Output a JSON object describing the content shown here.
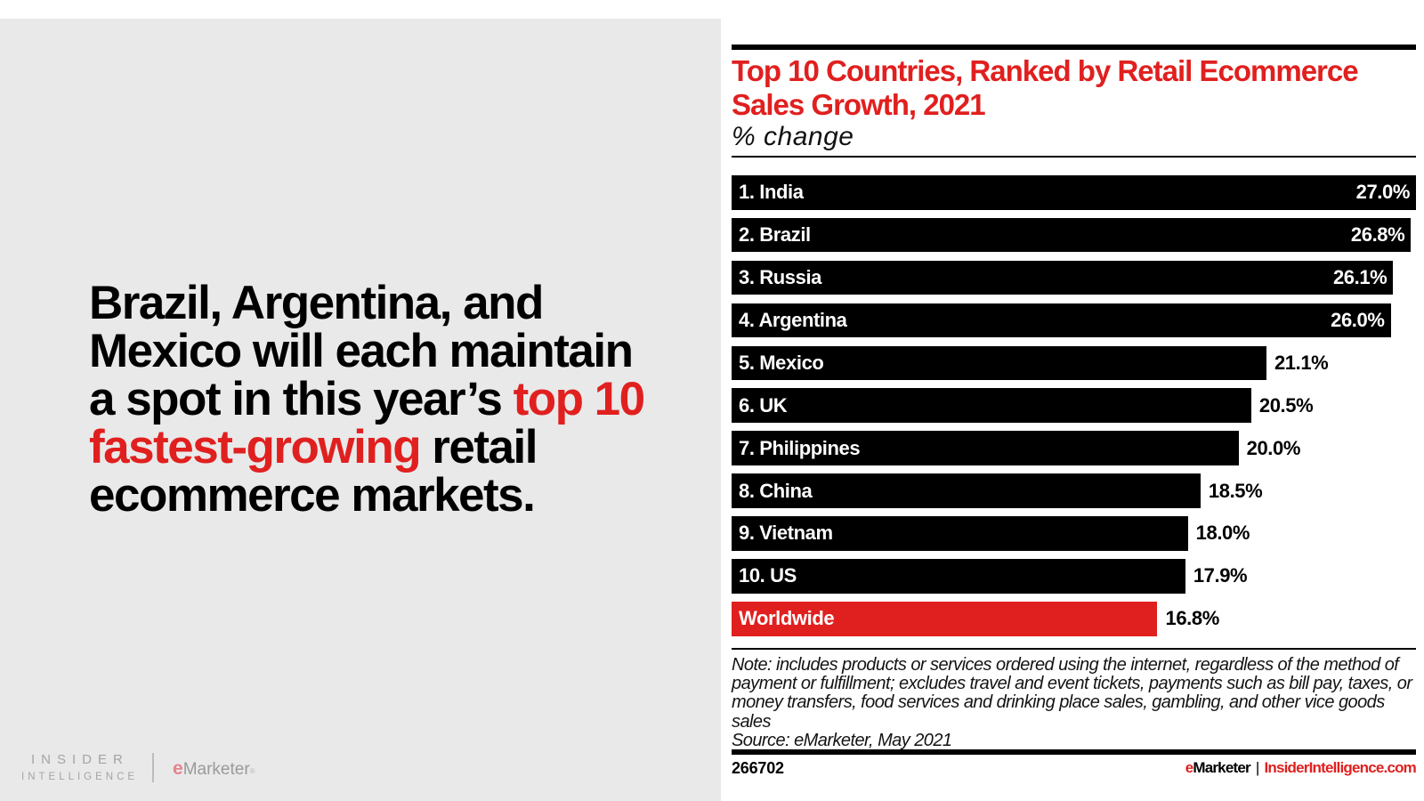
{
  "colors": {
    "accent_red": "#e0201f",
    "bar_black": "#000000",
    "panel_gray": "#e9e9e9",
    "logo_gray": "#a4a4a4"
  },
  "left_panel": {
    "headline_lines": [
      {
        "segments": [
          {
            "text": "Brazil, Argentina, and",
            "red": false
          }
        ]
      },
      {
        "segments": [
          {
            "text": "Mexico will each maintain",
            "red": false
          }
        ]
      },
      {
        "segments": [
          {
            "text": "a spot in this year’s ",
            "red": false
          },
          {
            "text": "top 10",
            "red": true
          }
        ]
      },
      {
        "segments": [
          {
            "text": "fastest-growing",
            "red": true
          },
          {
            "text": " retail",
            "red": false
          }
        ]
      },
      {
        "segments": [
          {
            "text": "ecommerce markets.",
            "red": false
          }
        ]
      }
    ],
    "logo": {
      "line1": "INSIDER",
      "line2": "INTELLIGENCE",
      "emarketer_e": "e",
      "emarketer_rest": "Marketer",
      "registered": "®"
    }
  },
  "chart": {
    "title_line1": "Top 10 Countries, Ranked by Retail Ecommerce",
    "title_line2": "Sales Growth, 2021",
    "subtitle": "% change",
    "note_lines": [
      "Note: includes products or services ordered using the internet, regardless of the method of",
      "payment or fulfillment; excludes travel and event tickets, payments such as bill pay, taxes, or",
      "money transfers, food services and drinking place sales, gambling, and other vice goods",
      "sales"
    ],
    "source_line": "Source: eMarketer, May 2021",
    "footer": {
      "chart_id": "266702",
      "brand_e": "e",
      "brand_rest": "Marketer",
      "separator": "|",
      "site": "InsiderIntelligence.com"
    }
  },
  "chart_data": {
    "type": "bar",
    "orientation": "horizontal",
    "title": "Top 10 Countries, Ranked by Retail Ecommerce Sales Growth, 2021",
    "xlabel": "% change",
    "xlim": [
      0,
      27.0
    ],
    "grid": false,
    "legend": false,
    "categories": [
      "1. India",
      "2. Brazil",
      "3. Russia",
      "4. Argentina",
      "5. Mexico",
      "6. UK",
      "7. Philippines",
      "8. China",
      "9. Vietnam",
      "10. US",
      "Worldwide"
    ],
    "values": [
      27.0,
      26.8,
      26.1,
      26.0,
      21.1,
      20.5,
      20.0,
      18.5,
      18.0,
      17.9,
      16.8
    ],
    "items": [
      {
        "label": "1. India",
        "value": 27.0,
        "display": "27.0%",
        "value_inside": true,
        "color": "#000000"
      },
      {
        "label": "2. Brazil",
        "value": 26.8,
        "display": "26.8%",
        "value_inside": true,
        "color": "#000000"
      },
      {
        "label": "3. Russia",
        "value": 26.1,
        "display": "26.1%",
        "value_inside": true,
        "color": "#000000"
      },
      {
        "label": "4. Argentina",
        "value": 26.0,
        "display": "26.0%",
        "value_inside": true,
        "color": "#000000"
      },
      {
        "label": "5. Mexico",
        "value": 21.1,
        "display": "21.1%",
        "value_inside": false,
        "color": "#000000"
      },
      {
        "label": "6. UK",
        "value": 20.5,
        "display": "20.5%",
        "value_inside": false,
        "color": "#000000"
      },
      {
        "label": "7. Philippines",
        "value": 20.0,
        "display": "20.0%",
        "value_inside": false,
        "color": "#000000"
      },
      {
        "label": "8. China",
        "value": 18.5,
        "display": "18.5%",
        "value_inside": false,
        "color": "#000000"
      },
      {
        "label": "9. Vietnam",
        "value": 18.0,
        "display": "18.0%",
        "value_inside": false,
        "color": "#000000"
      },
      {
        "label": "10. US",
        "value": 17.9,
        "display": "17.9%",
        "value_inside": false,
        "color": "#000000"
      },
      {
        "label": "Worldwide",
        "value": 16.8,
        "display": "16.8%",
        "value_inside": false,
        "color": "#e0201f"
      }
    ]
  }
}
